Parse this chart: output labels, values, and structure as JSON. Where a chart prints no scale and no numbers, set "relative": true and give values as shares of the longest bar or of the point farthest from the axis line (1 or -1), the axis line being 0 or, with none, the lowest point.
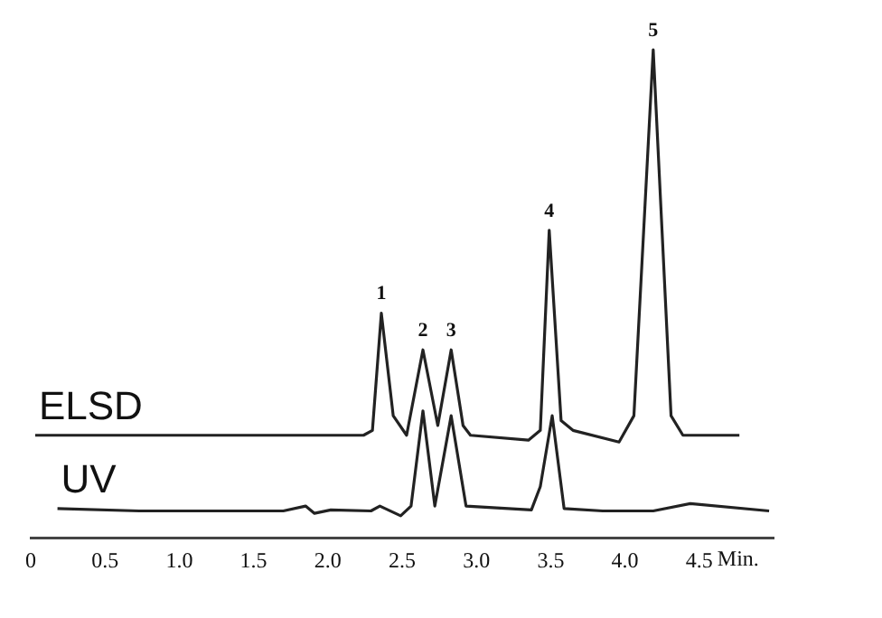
{
  "chart_data": {
    "type": "line",
    "relative": true,
    "xlabel": "Min.",
    "xlim": [
      0,
      5
    ],
    "xticks": [
      0,
      0.5,
      {
        "value": 1,
        "label": "1.0"
      },
      1.5,
      {
        "value": 2,
        "label": "2.0"
      },
      2.5,
      {
        "value": 3,
        "label": "3.0"
      },
      3.5,
      {
        "value": 4,
        "label": "4.0"
      },
      4.5
    ],
    "grid": false,
    "legend": false,
    "marker": "none",
    "line_style": "solid",
    "series": [
      {
        "name": "ELSD",
        "color": "#222222",
        "x": [
          0.03,
          2.24,
          2.3,
          2.36,
          2.44,
          2.53,
          2.64,
          2.74,
          2.83,
          2.91,
          2.96,
          3.35,
          3.43,
          3.49,
          3.57,
          3.65,
          3.96,
          4.06,
          4.19,
          4.31,
          4.39,
          4.77
        ],
        "values": [
          0.21,
          0.21,
          0.22,
          0.46,
          0.25,
          0.21,
          0.385,
          0.23,
          0.385,
          0.23,
          0.21,
          0.2,
          0.22,
          0.63,
          0.24,
          0.22,
          0.196,
          0.25,
          1.0,
          0.25,
          0.21,
          0.21
        ]
      },
      {
        "name": "UV",
        "color": "#222222",
        "x": [
          0.18,
          0.73,
          1.7,
          1.85,
          1.91,
          2.02,
          2.29,
          2.35,
          2.49,
          2.56,
          2.64,
          2.72,
          2.83,
          2.93,
          3.37,
          3.43,
          3.51,
          3.59,
          3.85,
          4.19,
          4.44,
          4.97
        ],
        "values": [
          0.06,
          0.055,
          0.055,
          0.065,
          0.05,
          0.057,
          0.055,
          0.065,
          0.045,
          0.065,
          0.26,
          0.065,
          0.25,
          0.065,
          0.057,
          0.105,
          0.25,
          0.06,
          0.055,
          0.055,
          0.07,
          0.055
        ]
      }
    ],
    "annotations": [
      {
        "text": "1",
        "x": 2.36,
        "y": 0.46
      },
      {
        "text": "2",
        "x": 2.64,
        "y": 0.385
      },
      {
        "text": "3",
        "x": 2.83,
        "y": 0.385
      },
      {
        "text": "4",
        "x": 3.49,
        "y": 0.63
      },
      {
        "text": "5",
        "x": 4.19,
        "y": 1.0
      }
    ]
  }
}
